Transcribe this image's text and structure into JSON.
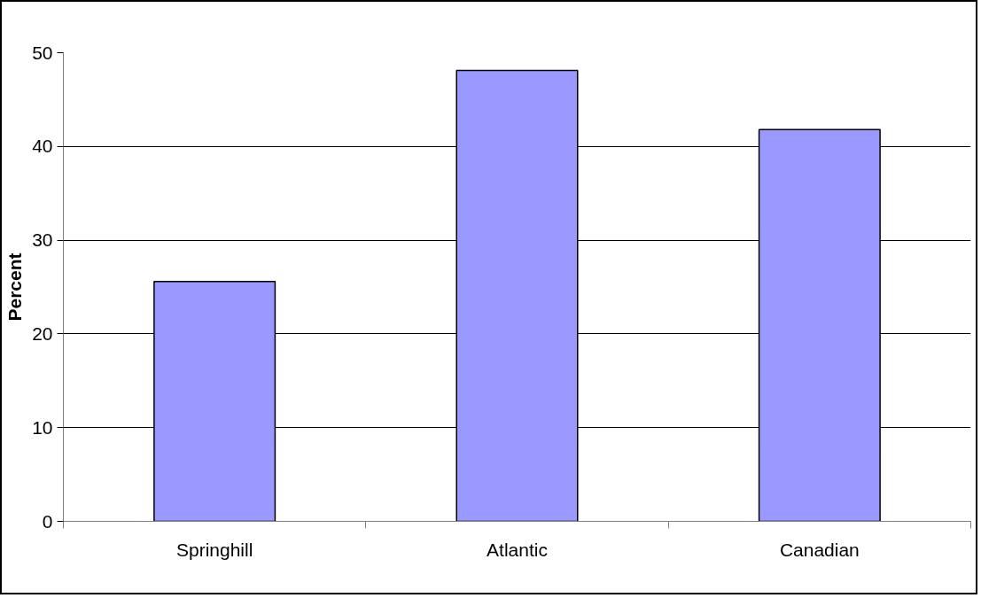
{
  "chart_data": {
    "type": "bar",
    "ylabel": "Percent",
    "categories": [
      "Springhill",
      "Atlantic",
      "Canadian"
    ],
    "values": [
      25.6,
      48.1,
      41.8
    ],
    "color": "#9999ff",
    "ylim": [
      0,
      50
    ],
    "yticks": [
      0,
      10,
      20,
      30,
      40,
      50
    ],
    "grid": "y"
  }
}
